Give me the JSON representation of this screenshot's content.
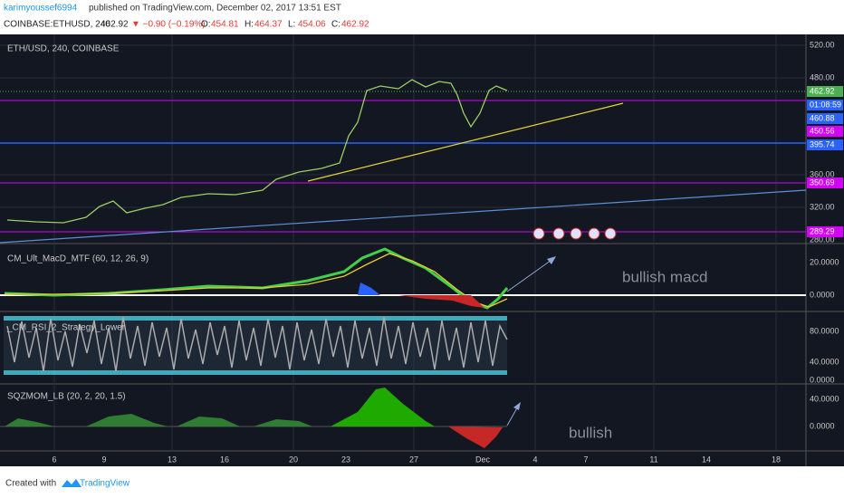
{
  "header": {
    "author": "karimyoussef6994",
    "published": "published on TradingView.com, December 02, 2017 13:51 EST",
    "symbol": "COINBASE:ETHUSD, 240",
    "last": "462.92",
    "change": "▼ −0.90 (−0.19%)",
    "ohlc": [
      {
        "label": "O:",
        "value": "454.81"
      },
      {
        "label": "H:",
        "value": "464.37"
      },
      {
        "label": "L:",
        "value": "454.06"
      },
      {
        "label": "C:",
        "value": "462.92"
      }
    ]
  },
  "panes": [
    {
      "title": "ETH/USD, 240, COINBASE",
      "axis": [
        "520.00",
        "480.00",
        "360.00",
        "320.00",
        "280.00"
      ],
      "price_labels": [
        "462.92",
        "01:08:59",
        "460.88",
        "450.56",
        "395.74",
        "350.69",
        "289.29"
      ]
    },
    {
      "title": "CM_Ult_MacD_MTF (60, 12, 26, 9)",
      "axis": [
        "20.0000",
        "0.0000"
      ],
      "annotation": "bullish macd"
    },
    {
      "title": "_CM_RSI_2_Strategy_Lower",
      "axis": [
        "80.0000",
        "40.0000",
        "0.0000"
      ]
    },
    {
      "title": "SQZMOM_LB (20, 2, 20, 1.5)",
      "axis": [
        "40.0000",
        "0.0000"
      ],
      "annotation": "bullish"
    }
  ],
  "x_axis": [
    "6",
    "9",
    "13",
    "16",
    "20",
    "23",
    "27",
    "Dec",
    "4",
    "7",
    "11",
    "14",
    "18"
  ],
  "footer": {
    "created": "Created with",
    "brand": "TradingView"
  }
}
